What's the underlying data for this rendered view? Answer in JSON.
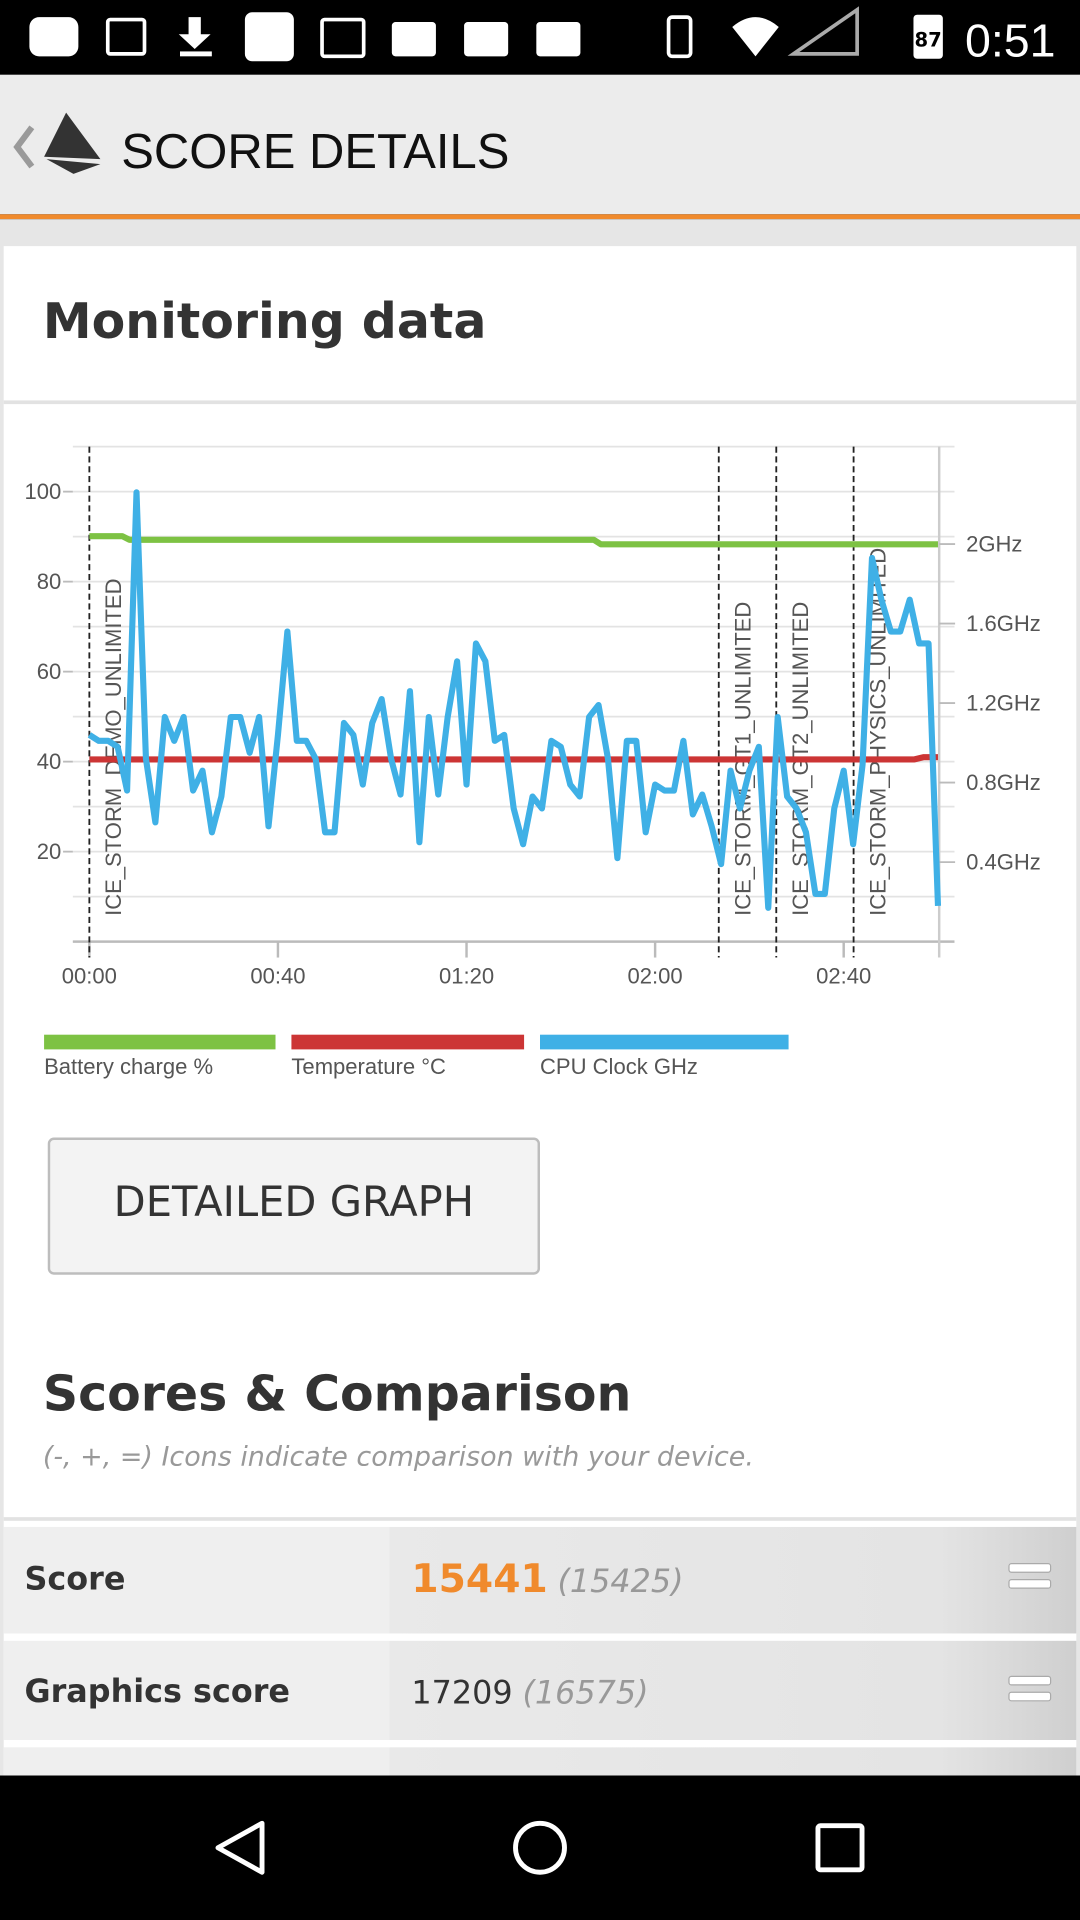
{
  "status_bar": {
    "time": "0:51",
    "battery": "87"
  },
  "header": {
    "title": "SCORE DETAILS"
  },
  "monitoring": {
    "title": "Monitoring data",
    "button": "DETAILED GRAPH"
  },
  "chart_data": {
    "type": "line",
    "xlim": [
      -3.5,
      183.5
    ],
    "xticks": [
      {
        "value": 0,
        "label": "00:00"
      },
      {
        "value": 40,
        "label": "00:40"
      },
      {
        "value": 80,
        "label": "01:20"
      },
      {
        "value": 120,
        "label": "02:00"
      },
      {
        "value": 160,
        "label": "02:40"
      }
    ],
    "ylim": [
      0,
      110
    ],
    "yticks": [
      20,
      40,
      60,
      80,
      100
    ],
    "ygrid": [
      0,
      10,
      20,
      30,
      40,
      50,
      60,
      70,
      80,
      90,
      100,
      110
    ],
    "y2lim": [
      0,
      2.49
    ],
    "y2ticks": [
      {
        "value": 2,
        "label": "2GHz"
      },
      {
        "value": 1.6,
        "label": "1.6GHz"
      },
      {
        "value": 1.2,
        "label": "1.2GHz"
      },
      {
        "value": 0.8,
        "label": "0.8GHz"
      },
      {
        "value": 0.4,
        "label": "0.4GHz"
      }
    ],
    "grid": true,
    "annotations": [
      {
        "x": 0,
        "label": "ICE_STORM_DEMO_UNLIMITED"
      },
      {
        "x": 133.5,
        "label": "ICE_STORM_GT1_UNLIMITED"
      },
      {
        "x": 145.7,
        "label": "ICE_STORM_GT2_UNLIMITED"
      },
      {
        "x": 162.1,
        "label": "ICE_STORM_PHYSICS_UNLIMITED"
      }
    ],
    "series": [
      {
        "name": "Battery charge %",
        "color": "#7dc243",
        "x": [
          0,
          7,
          8.5,
          107,
          108.5,
          180
        ],
        "values": [
          90.1,
          90.1,
          89.3,
          89.3,
          88.3,
          88.3
        ]
      },
      {
        "name": "Temperature °C",
        "color": "#cc3535",
        "x": [
          0,
          175,
          177,
          180
        ],
        "values": [
          40.5,
          40.5,
          41,
          41
        ]
      },
      {
        "name": "CPU Clock GHz",
        "color": "#3fb0e6",
        "axis": "y2",
        "x": [
          0,
          2,
          4,
          6,
          8,
          10,
          12,
          14,
          16,
          18,
          20,
          22,
          24,
          26,
          28,
          30,
          32,
          34,
          36,
          38,
          40,
          42,
          44,
          46,
          48,
          50,
          52,
          54,
          56,
          58,
          60,
          62,
          64,
          66,
          68,
          70,
          72,
          74,
          76,
          78,
          80,
          82,
          84,
          86,
          88,
          90,
          92,
          94,
          96,
          98,
          100,
          102,
          104,
          106,
          108,
          110,
          112,
          114,
          116,
          118,
          120,
          122,
          124,
          126,
          128,
          130,
          132,
          134,
          136,
          138,
          140,
          142,
          144,
          146,
          148,
          150,
          152,
          154,
          156,
          158,
          160,
          162,
          164,
          166,
          168,
          170,
          172,
          174,
          176,
          178,
          180
        ],
        "values": [
          1.04,
          1.01,
          1.01,
          0.98,
          0.76,
          2.26,
          0.92,
          0.6,
          1.13,
          1.01,
          1.13,
          0.76,
          0.86,
          0.55,
          0.73,
          1.13,
          1.13,
          0.95,
          1.13,
          0.58,
          1.04,
          1.56,
          1.01,
          1.01,
          0.92,
          0.55,
          0.55,
          1.1,
          1.04,
          0.79,
          1.1,
          1.22,
          0.92,
          0.74,
          1.26,
          0.5,
          1.13,
          0.74,
          1.13,
          1.41,
          0.79,
          1.5,
          1.41,
          1.01,
          1.04,
          0.67,
          0.49,
          0.73,
          0.67,
          1.01,
          0.98,
          0.79,
          0.73,
          1.13,
          1.19,
          0.92,
          0.42,
          1.01,
          1.01,
          0.55,
          0.79,
          0.76,
          0.76,
          1.01,
          0.64,
          0.74,
          0.58,
          0.39,
          0.86,
          0.67,
          0.86,
          0.98,
          0.17,
          1.13,
          0.73,
          0.67,
          0.55,
          0.24,
          0.24,
          0.67,
          0.86,
          0.49,
          0.89,
          1.93,
          1.72,
          1.56,
          1.56,
          1.72,
          1.5,
          1.5,
          0.18
        ]
      }
    ]
  },
  "scores": {
    "title": "Scores & Comparison",
    "subtitle": "(-, +, =) Icons indicate comparison with your device.",
    "rows": [
      {
        "label": "Score",
        "value": 15441,
        "comparison": "(15425)"
      },
      {
        "label": "Graphics score",
        "value": 17209,
        "comparison": "(16575)"
      }
    ]
  }
}
